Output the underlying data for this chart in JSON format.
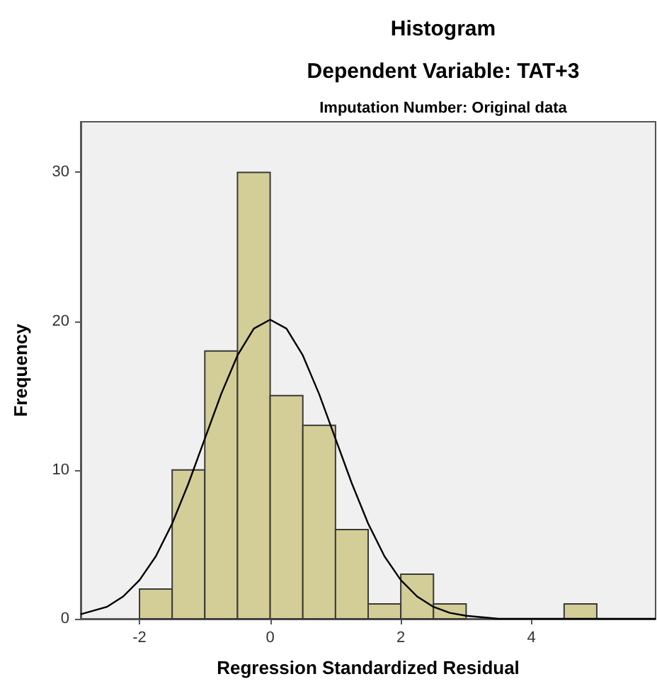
{
  "chart_data": {
    "type": "histogram",
    "title": "Histogram",
    "subtitle": "Dependent Variable: TAT+3",
    "annotations": [
      "Imputation Number: Original data"
    ],
    "xlabel": "Regression Standardized Residual",
    "ylabel": "Frequency",
    "bins": [
      -2,
      -1.5,
      -1,
      -0.5,
      0,
      0.5,
      1,
      1.5,
      2,
      2.5,
      3,
      3.5,
      4,
      4.5,
      5
    ],
    "series": [
      {
        "color": "#d3ce97",
        "values": [
          2,
          10,
          18,
          30,
          15,
          13,
          6,
          1,
          3,
          1,
          0,
          0,
          0,
          1
        ]
      },
      {
        "type": "line",
        "color": "#000000",
        "x": [
          -2.9,
          -2.5,
          -2.25,
          -2,
          -1.75,
          -1.5,
          -1.25,
          -1,
          -0.75,
          -0.5,
          -0.25,
          0,
          0.25,
          0.5,
          0.75,
          1,
          1.25,
          1.5,
          1.75,
          2,
          2.25,
          2.5,
          2.75,
          3,
          3.5,
          4,
          5,
          5.9
        ],
        "values": [
          0.3,
          0.8,
          1.5,
          2.6,
          4.2,
          6.4,
          9.1,
          12.1,
          15.1,
          17.7,
          19.5,
          20.1,
          19.5,
          17.7,
          15.1,
          12.1,
          9.1,
          6.4,
          4.2,
          2.6,
          1.5,
          0.8,
          0.4,
          0.2,
          0,
          0,
          0,
          0
        ]
      }
    ],
    "xlim": [
      -2.9,
      5.9
    ],
    "ylim": [
      0,
      33.4
    ],
    "xticks": [
      -2,
      0,
      2,
      4
    ],
    "yticks": [
      0,
      10,
      20,
      30
    ],
    "grid": false,
    "marker": "none",
    "line_style": "solid"
  }
}
